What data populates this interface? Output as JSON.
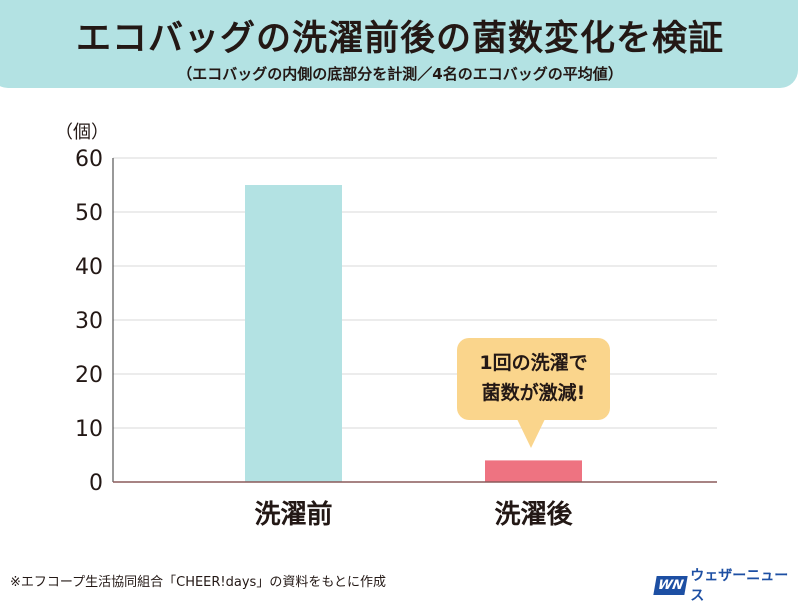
{
  "title": "エコバッグの洗濯前後の菌数変化を検証",
  "subtitle": "（エコバッグの内側の底部分を計測／4名のエコバッグの平均値）",
  "callout": {
    "line1": "1回の洗濯で",
    "line2": "菌数が激減!"
  },
  "source": "※エフコープ生活協同組合「CHEER!days」の資料をもとに作成",
  "logo": {
    "mark": "WN",
    "text": "ウェザーニュース"
  },
  "chart_data": {
    "type": "bar",
    "title": "エコバッグの洗濯前後の菌数変化を検証",
    "ylabel": "（個）",
    "categories": [
      "洗濯前",
      "洗濯後"
    ],
    "values": [
      55,
      4
    ],
    "colors": [
      "#b3e2e3",
      "#ee7381"
    ],
    "ylim": [
      0,
      60
    ],
    "yticks": [
      0,
      10,
      20,
      30,
      40,
      50,
      60
    ],
    "grid": true
  }
}
